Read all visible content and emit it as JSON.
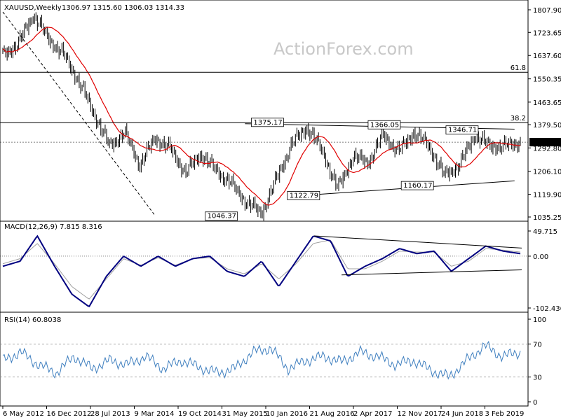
{
  "header": {
    "symbol": "XAUUSD,Weekly",
    "ohlc": "1306.97 1315.60 1306.03 1314.33"
  },
  "watermark": "ActionForex.com",
  "colors": {
    "price": "#000000",
    "sma": "#e00000",
    "macd": "#000080",
    "signal": "#a0a0a0",
    "rsi": "#3f7fbf",
    "grid": "#000000"
  },
  "chart_data": [
    {
      "type": "line",
      "panel": "price",
      "title": "XAUUSD,Weekly",
      "y_ticks": [
        "1807.90",
        "1723.65",
        "1637.60",
        "1550.35",
        "1463.65",
        "1379.50",
        "1292.80",
        "1206.10",
        "1119.90",
        "1035.25"
      ],
      "ylim": [
        1035.25,
        1807.9
      ],
      "current_price_label": "1314.33",
      "current_price": 1314.33,
      "fib_levels": [
        {
          "label": "61.8",
          "value": 1575
        },
        {
          "label": "38.2",
          "value": 1387
        }
      ],
      "annotations": [
        {
          "text": "1375.17",
          "value": 1375.17
        },
        {
          "text": "1366.05",
          "value": 1366.05
        },
        {
          "text": "1346.71",
          "value": 1346.71
        },
        {
          "text": "1046.37",
          "value": 1046.37
        },
        {
          "text": "1122.79",
          "value": 1122.79
        },
        {
          "text": "1160.17",
          "value": 1160.17
        }
      ],
      "close_anchors": [
        1640,
        1680,
        1790,
        1700,
        1640,
        1540,
        1420,
        1300,
        1350,
        1230,
        1330,
        1290,
        1200,
        1270,
        1210,
        1160,
        1090,
        1050,
        1180,
        1310,
        1370,
        1280,
        1140,
        1260,
        1240,
        1340,
        1280,
        1350,
        1300,
        1190,
        1230,
        1340,
        1300,
        1300,
        1314
      ]
    },
    {
      "type": "line",
      "panel": "macd",
      "title": "MACD(12,26,9) 7.815 8.316",
      "y_ticks": [
        "49.715",
        "0.00",
        "-102.436"
      ],
      "ylim": [
        -102.436,
        49.715
      ],
      "macd_anchors": [
        -20,
        -10,
        40,
        -20,
        -75,
        -100,
        -40,
        0,
        -20,
        0,
        -20,
        -5,
        0,
        -30,
        -40,
        -10,
        -60,
        -10,
        40,
        30,
        -40,
        -20,
        -5,
        15,
        5,
        10,
        -30,
        -5,
        20,
        10,
        5
      ],
      "signal_anchors": [
        -15,
        -5,
        25,
        -15,
        -60,
        -85,
        -45,
        -5,
        -18,
        -3,
        -18,
        -5,
        -3,
        -25,
        -35,
        -15,
        -45,
        -15,
        25,
        32,
        -25,
        -25,
        -10,
        10,
        8,
        8,
        -20,
        -10,
        15,
        12,
        8
      ]
    },
    {
      "type": "line",
      "panel": "rsi",
      "title": "RSI(14) 60.8038",
      "y_ticks": [
        "100",
        "70",
        "30",
        "0"
      ],
      "ylim": [
        0,
        100
      ],
      "levels": [
        70,
        30
      ],
      "rsi_anchors": [
        50,
        60,
        45,
        35,
        55,
        40,
        50,
        45,
        55,
        40,
        50,
        42,
        35,
        40,
        60,
        65,
        40,
        50,
        55,
        48,
        60,
        55,
        45,
        50,
        38,
        30,
        50,
        68,
        55,
        60
      ]
    }
  ],
  "x_axis": {
    "labels": [
      "6 May 2012",
      "16 Dec 2012",
      "28 Jul 2013",
      "9 Mar 2014",
      "19 Oct 2014",
      "31 May 2015",
      "10 Jan 2016",
      "21 Aug 2016",
      "2 Apr 2017",
      "12 Nov 2017",
      "24 Jun 2018",
      "3 Feb 2019"
    ]
  }
}
